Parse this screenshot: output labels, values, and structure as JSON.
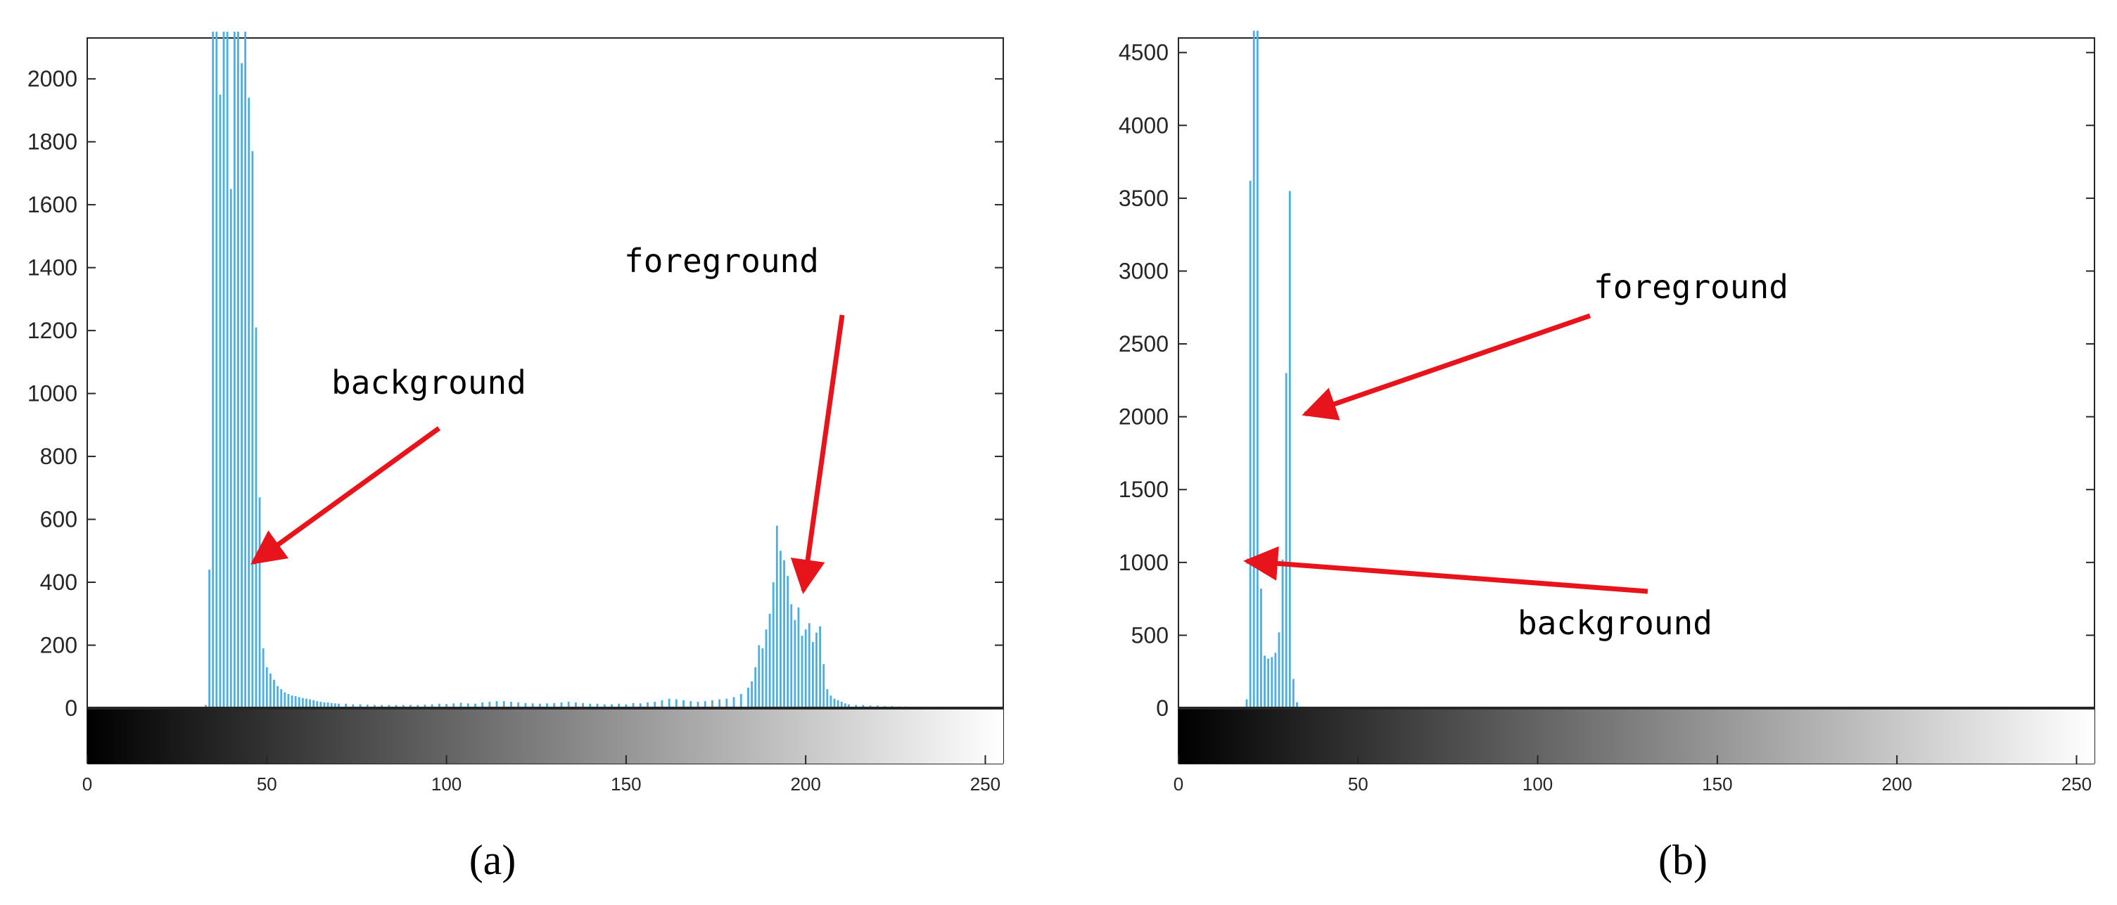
{
  "chart_data": [
    {
      "type": "bar",
      "caption": "(a)",
      "xlim": [
        0,
        255
      ],
      "ylim": [
        0,
        2130
      ],
      "x_ticks": [
        0,
        50,
        100,
        150,
        200,
        250
      ],
      "x_tick_labels": [
        "0",
        "50",
        "100",
        "150",
        "200",
        "250"
      ],
      "y_ticks": [
        0,
        200,
        400,
        600,
        800,
        1000,
        1200,
        1400,
        1600,
        1800,
        2000
      ],
      "y_tick_labels": [
        "0",
        "200",
        "400",
        "600",
        "800",
        "1000",
        "1200",
        "1400",
        "1600",
        "1800",
        "2000"
      ],
      "colorbar": "grayscale 0-255",
      "bar_color": "#4DAEE0",
      "series": [
        {
          "x": [
            33,
            34,
            35,
            36,
            37,
            38,
            39,
            40,
            41,
            42,
            43,
            44,
            45,
            46,
            47,
            48,
            49,
            50,
            51,
            52,
            53,
            54,
            55,
            56,
            57,
            58,
            59,
            60,
            61,
            62,
            63,
            64,
            65,
            66,
            67,
            68,
            69,
            70,
            72,
            74,
            76,
            78,
            80,
            82,
            84,
            86,
            88,
            90,
            92,
            94,
            96,
            98,
            100,
            102,
            104,
            106,
            108,
            110,
            112,
            114,
            116,
            118,
            120,
            122,
            124,
            126,
            128,
            130,
            132,
            134,
            136,
            138,
            140,
            142,
            144,
            146,
            148,
            150,
            152,
            154,
            156,
            158,
            160,
            162,
            164,
            166,
            168,
            170,
            172,
            174,
            176,
            178,
            180,
            182,
            184,
            185,
            186,
            187,
            188,
            189,
            190,
            191,
            192,
            193,
            194,
            195,
            196,
            197,
            198,
            199,
            200,
            201,
            202,
            203,
            204,
            205,
            206,
            207,
            208,
            209,
            210,
            211,
            212,
            214,
            216,
            218,
            220,
            222,
            224,
            226,
            228,
            230,
            232,
            234,
            236
          ],
          "values": [
            10,
            440,
            2150,
            2150,
            1950,
            2150,
            2150,
            1650,
            2150,
            2150,
            2050,
            2150,
            1940,
            1770,
            1210,
            670,
            190,
            130,
            110,
            90,
            70,
            60,
            50,
            45,
            40,
            38,
            35,
            32,
            30,
            28,
            25,
            22,
            20,
            18,
            18,
            16,
            15,
            14,
            14,
            12,
            12,
            11,
            10,
            10,
            10,
            10,
            10,
            10,
            10,
            11,
            12,
            14,
            13,
            15,
            17,
            15,
            14,
            18,
            20,
            22,
            22,
            20,
            18,
            16,
            15,
            14,
            15,
            16,
            18,
            20,
            18,
            16,
            14,
            14,
            12,
            12,
            14,
            12,
            16,
            15,
            18,
            20,
            25,
            30,
            28,
            25,
            22,
            20,
            22,
            25,
            28,
            30,
            35,
            45,
            65,
            85,
            130,
            200,
            190,
            250,
            300,
            400,
            580,
            500,
            470,
            420,
            330,
            280,
            320,
            230,
            250,
            270,
            210,
            240,
            260,
            140,
            60,
            40,
            30,
            25,
            20,
            15,
            12,
            10,
            10,
            8,
            8,
            6,
            6,
            5,
            5,
            4,
            4,
            3,
            3
          ]
        }
      ],
      "annotations": [
        {
          "text": "foreground",
          "points_to": [
            200,
            370
          ]
        },
        {
          "text": "background",
          "points_to": [
            45,
            460
          ]
        }
      ]
    },
    {
      "type": "bar",
      "caption": "(b)",
      "xlim": [
        0,
        255
      ],
      "ylim": [
        0,
        4600
      ],
      "x_ticks": [
        0,
        50,
        100,
        150,
        200,
        250
      ],
      "x_tick_labels": [
        "0",
        "50",
        "100",
        "150",
        "200",
        "250"
      ],
      "y_ticks": [
        0,
        500,
        1000,
        1500,
        2000,
        2500,
        3000,
        3500,
        4000,
        4500
      ],
      "y_tick_labels": [
        "0",
        "500",
        "1000",
        "1500",
        "2000",
        "2500",
        "3000",
        "3500",
        "4000",
        "4500"
      ],
      "colorbar": "grayscale 0-255",
      "bar_color": "#4DAEE0",
      "series": [
        {
          "x": [
            19,
            20,
            21,
            22,
            23,
            24,
            25,
            26,
            27,
            28,
            29,
            30,
            31,
            32,
            33,
            34
          ],
          "values": [
            60,
            3620,
            4650,
            4650,
            820,
            360,
            340,
            350,
            380,
            520,
            1020,
            2300,
            3550,
            200,
            40,
            10
          ]
        }
      ],
      "annotations": [
        {
          "text": "foreground",
          "points_to": [
            34,
            2000
          ]
        },
        {
          "text": "background",
          "points_to": [
            19,
            1000
          ]
        }
      ]
    }
  ]
}
